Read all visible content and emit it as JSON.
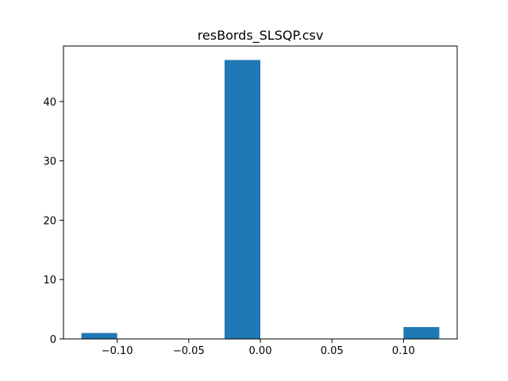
{
  "chart_data": {
    "type": "bar",
    "title": "resBords_SLSQP.csv",
    "xlabel": "",
    "ylabel": "",
    "xlim": [
      -0.1375,
      0.1375
    ],
    "ylim": [
      0,
      49.35
    ],
    "xticks": [
      -0.1,
      -0.05,
      0.0,
      0.05,
      0.1
    ],
    "xtick_labels": [
      "−0.10",
      "−0.05",
      "0.00",
      "0.05",
      "0.10"
    ],
    "yticks": [
      0,
      10,
      20,
      30,
      40
    ],
    "ytick_labels": [
      "0",
      "10",
      "20",
      "30",
      "40"
    ],
    "grid": false,
    "bins": [
      {
        "x0": -0.125,
        "x1": -0.1,
        "count": 1
      },
      {
        "x0": -0.1,
        "x1": -0.075,
        "count": 0
      },
      {
        "x0": -0.075,
        "x1": -0.05,
        "count": 0
      },
      {
        "x0": -0.05,
        "x1": -0.025,
        "count": 0
      },
      {
        "x0": -0.025,
        "x1": 0.0,
        "count": 47
      },
      {
        "x0": 0.0,
        "x1": 0.025,
        "count": 0
      },
      {
        "x0": 0.025,
        "x1": 0.05,
        "count": 0
      },
      {
        "x0": 0.05,
        "x1": 0.075,
        "count": 0
      },
      {
        "x0": 0.075,
        "x1": 0.1,
        "count": 0
      },
      {
        "x0": 0.1,
        "x1": 0.125,
        "count": 2
      }
    ],
    "bar_color": "#1f77b4"
  }
}
